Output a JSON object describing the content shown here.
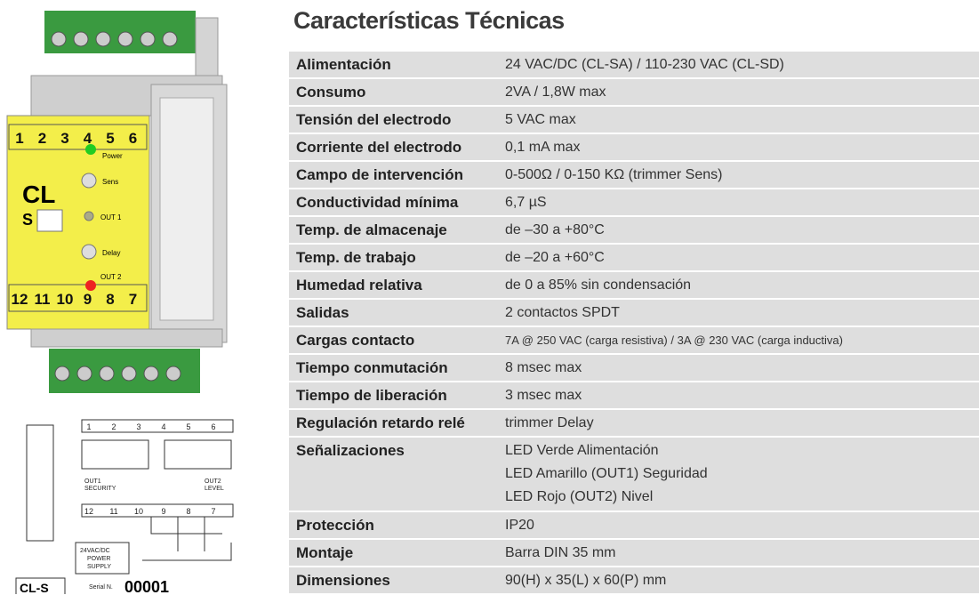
{
  "title": "Características Técnicas",
  "specs": [
    {
      "label": "Alimentación",
      "value": [
        "24 VAC/DC (CL-SA)  /  110-230 VAC (CL-SD)"
      ]
    },
    {
      "label": "Consumo",
      "value": [
        "2VA / 1,8W max"
      ]
    },
    {
      "label": "Tensión del electrodo",
      "value": [
        "5 VAC max"
      ]
    },
    {
      "label": "Corriente del electrodo",
      "value": [
        "0,1 mA max"
      ]
    },
    {
      "label": "Campo de intervención",
      "value": [
        "0-500Ω / 0-150 KΩ (trimmer Sens)"
      ]
    },
    {
      "label": "Conductividad mínima",
      "value": [
        "6,7 µS"
      ]
    },
    {
      "label": "Temp. de almacenaje",
      "value": [
        "de –30 a +80°C"
      ]
    },
    {
      "label": "Temp. de trabajo",
      "value": [
        "de –20 a +60°C"
      ]
    },
    {
      "label": "Humedad relativa",
      "value": [
        "de 0 a 85% sin condensación"
      ]
    },
    {
      "label": "Salidas",
      "value": [
        "2 contactos SPDT"
      ]
    },
    {
      "label": "Cargas contacto",
      "value": [
        "7A @ 250 VAC (carga resistiva) / 3A @ 230 VAC (carga inductiva)"
      ]
    },
    {
      "label": "Tiempo conmutación",
      "value": [
        "8 msec max"
      ]
    },
    {
      "label": "Tiempo de liberación",
      "value": [
        "3 msec max"
      ]
    },
    {
      "label": "Regulación retardo relé",
      "value": [
        "trimmer Delay"
      ]
    },
    {
      "label": "Señalizaciones",
      "value": [
        "LED Verde Alimentación",
        "LED Amarillo (OUT1) Seguridad",
        "LED Rojo (OUT2) Nivel"
      ]
    },
    {
      "label": "Protección",
      "value": [
        "IP20"
      ]
    },
    {
      "label": "Montaje",
      "value": [
        "Barra DIN 35 mm"
      ]
    },
    {
      "label": "Dimensiones",
      "value": [
        "90(H) x 35(L) x 60(P) mm"
      ]
    }
  ],
  "device": {
    "top_terminals": [
      "1",
      "2",
      "3",
      "4",
      "5",
      "6"
    ],
    "bottom_terminals": [
      "12",
      "11",
      "10",
      "9",
      "8",
      "7"
    ],
    "model": "CL",
    "model_suffix": "S",
    "power": "Power",
    "sens": "Sens",
    "out1": "OUT 1",
    "delay": "Delay",
    "out2": "OUT 2"
  },
  "diagram": {
    "out1": "OUT1",
    "security": "SECURITY",
    "out2": "OUT2",
    "level": "LEVEL",
    "supply1": "24VAC/DC",
    "supply2": "POWER",
    "supply3": "SUPPLY",
    "model": "CL-S",
    "serial_label": "Serial N.",
    "serial": "00001"
  }
}
